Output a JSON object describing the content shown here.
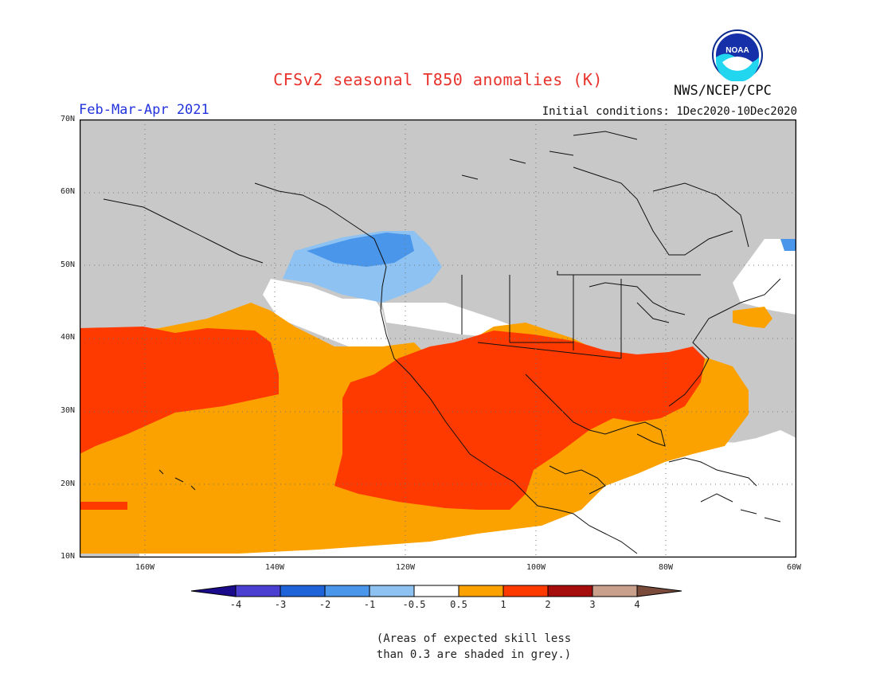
{
  "title": "CFSv2 seasonal T850 anomalies (K)",
  "agency": "NWS/NCEP/CPC",
  "logo_text": "NOAA",
  "period": "Feb-Mar-Apr 2021",
  "initial_conditions": "Initial conditions: 1Dec2020-10Dec2020",
  "lat_labels": [
    "70N",
    "60N",
    "50N",
    "40N",
    "30N",
    "20N",
    "10N"
  ],
  "lon_labels": [
    "160W",
    "140W",
    "120W",
    "100W",
    "80W",
    "60W"
  ],
  "colorbar": {
    "labels": [
      "-4",
      "-3",
      "-2",
      "-1",
      "-0.5",
      "0.5",
      "1",
      "2",
      "3",
      "4"
    ],
    "colors": [
      "#1a0a8c",
      "#4a3fd0",
      "#1e64d8",
      "#4a96ea",
      "#8ec2f2",
      "#ffffff",
      "#fba200",
      "#ff3a00",
      "#a50d0d",
      "#c8a08c",
      "#7a4a3a"
    ]
  },
  "note_line1": "(Areas of expected skill less",
  "note_line2": "than 0.3 are shaded in grey.)",
  "map": {
    "lat_range": [
      10,
      70
    ],
    "lon_range": [
      -170,
      -60
    ],
    "grey_color": "#c8c8c8"
  }
}
